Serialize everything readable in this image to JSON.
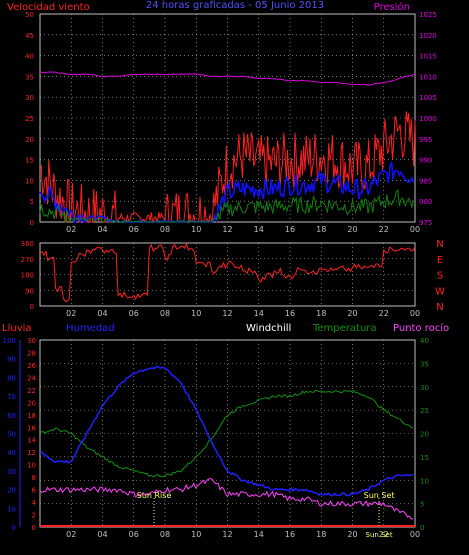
{
  "colors": {
    "wind": "#ff2020",
    "gust": "#ff2020",
    "pressure": "#e000e0",
    "title": "#5050ff",
    "dir": "#ff2020",
    "humidity": "#2020ff",
    "windchill": "#ffffff",
    "temperature": "#109010",
    "dewpoint": "#ff40ff",
    "rain": "#ff2020",
    "grid": "#c0c0c0",
    "frame": "#c0c0c0"
  },
  "chart_data": [
    {
      "type": "line",
      "title": "24 horas graficadas - 05 Junio 2013",
      "ylabel_left": "Velocidad viento",
      "ylabel_right": "Presión",
      "yticks_left": [
        "0",
        "5",
        "10",
        "15",
        "20",
        "25",
        "30",
        "35",
        "40",
        "45",
        "50"
      ],
      "yticks_right": [
        "975",
        "980",
        "985",
        "990",
        "995",
        "1000",
        "1005",
        "1010",
        "1015",
        "1020",
        "1025"
      ],
      "xticks": [
        "02",
        "04",
        "06",
        "08",
        "10",
        "12",
        "14",
        "16",
        "18",
        "20",
        "22",
        "00"
      ],
      "ylim_left": [
        0,
        50
      ],
      "ylim_right": [
        975,
        1025
      ],
      "x_hours": [
        0,
        1,
        2,
        3,
        4,
        5,
        6,
        7,
        8,
        9,
        10,
        11,
        12,
        13,
        14,
        15,
        16,
        17,
        18,
        19,
        20,
        21,
        22,
        23,
        24
      ],
      "series": [
        {
          "key": "gust",
          "values": [
            13,
            7,
            3,
            2,
            2,
            1,
            1,
            1,
            1,
            2,
            2,
            2,
            14,
            16,
            14,
            14,
            15,
            15,
            16,
            15,
            13,
            13,
            18,
            22,
            19
          ]
        },
        {
          "key": "wind",
          "values": [
            8,
            5,
            2,
            1,
            1,
            0,
            0,
            0,
            0,
            0,
            0,
            0,
            7,
            8,
            8,
            8,
            9,
            9,
            10,
            9,
            8,
            8,
            11,
            13,
            10
          ]
        },
        {
          "key": "pressure",
          "values": [
            1011,
            1011,
            1010.5,
            1010.5,
            1010,
            1010,
            1010.5,
            1010.5,
            1010.5,
            1010.5,
            1010.5,
            1010,
            1010,
            1010,
            1009.5,
            1009.5,
            1009,
            1009,
            1008.5,
            1008.5,
            1008,
            1008,
            1008.5,
            1009.5,
            1010.5
          ]
        }
      ]
    },
    {
      "type": "scatter",
      "yticks": [
        "0",
        "90",
        "180",
        "270",
        "360"
      ],
      "ylim": [
        0,
        360
      ],
      "right_labels": [
        "N",
        "W",
        "S",
        "E",
        "N"
      ],
      "xticks": [
        "02",
        "04",
        "06",
        "08",
        "10",
        "12",
        "14",
        "16",
        "18",
        "20",
        "22",
        "00"
      ],
      "series": [
        {
          "key": "dir",
          "x": [
            0,
            0.5,
            1,
            1.5,
            2,
            2.5,
            3,
            3.5,
            4,
            4.5,
            5,
            5.5,
            6,
            6.5,
            7,
            7.5,
            8,
            8.5,
            9,
            9.5,
            10,
            10.5,
            11,
            11.5,
            12,
            12.5,
            13,
            13.5,
            14,
            14.5,
            15,
            15.5,
            16,
            16.5,
            17,
            17.5,
            18,
            18.5,
            19,
            19.5,
            20,
            20.5,
            21,
            21.5,
            22,
            22.5,
            23,
            23.5,
            24
          ],
          "values": [
            300,
            260,
            100,
            40,
            250,
            300,
            320,
            320,
            320,
            320,
            60,
            60,
            60,
            60,
            330,
            330,
            280,
            340,
            340,
            320,
            240,
            240,
            200,
            230,
            240,
            220,
            200,
            200,
            150,
            180,
            200,
            180,
            170,
            220,
            200,
            200,
            210,
            200,
            210,
            210,
            220,
            220,
            220,
            240,
            320,
            330,
            320,
            330,
            340
          ]
        }
      ]
    },
    {
      "type": "line",
      "labels": {
        "rain": "Lluvia",
        "humidity": "Humedad",
        "windchill": "Windchill",
        "temperature": "Temperatura",
        "dewpoint": "Punto rocío"
      },
      "yticks_rain": [
        "0",
        "2",
        "4",
        "6",
        "8",
        "10",
        "12",
        "14",
        "16",
        "18",
        "20",
        "22",
        "24",
        "26",
        "28",
        "30"
      ],
      "yticks_humidity": [
        "0",
        "10",
        "20",
        "30",
        "40",
        "50",
        "60",
        "70",
        "80",
        "90",
        "100"
      ],
      "yticks_temp": [
        "0",
        "5",
        "10",
        "15",
        "20",
        "25",
        "30",
        "35",
        "40"
      ],
      "xticks": [
        "02",
        "04",
        "06",
        "08",
        "10",
        "12",
        "14",
        "16",
        "18",
        "20",
        "22",
        "00"
      ],
      "ylim_temp": [
        0,
        40
      ],
      "annotations": [
        {
          "text": "Sun Rise",
          "x": 7.3
        },
        {
          "text": "Sun Set",
          "x": 21.7
        }
      ],
      "extra_tick": "Sun Set",
      "x_hours": [
        0,
        1,
        2,
        3,
        4,
        5,
        6,
        7,
        8,
        9,
        10,
        11,
        12,
        13,
        14,
        15,
        16,
        17,
        18,
        19,
        20,
        21,
        22,
        23,
        24
      ],
      "series": [
        {
          "key": "temperature",
          "values": [
            20,
            21,
            20,
            17,
            15,
            13,
            12,
            11,
            11,
            12,
            15,
            19,
            24,
            26,
            27,
            28,
            28,
            29,
            29,
            29,
            29,
            28,
            25,
            23,
            21
          ]
        },
        {
          "key": "humidity",
          "values": [
            16,
            14,
            14,
            20,
            26,
            30,
            33,
            34,
            34,
            31,
            25,
            18,
            12,
            10,
            9,
            8,
            8,
            8,
            7,
            7,
            7,
            8,
            10,
            11,
            11
          ]
        },
        {
          "key": "dewpoint",
          "values": [
            8,
            8,
            8,
            8,
            8,
            8,
            7,
            7,
            8,
            8,
            9,
            10,
            7,
            7,
            7,
            7,
            6,
            6,
            5,
            5,
            5,
            5,
            5,
            3,
            2
          ]
        },
        {
          "key": "rain",
          "values": [
            0,
            0,
            0,
            0,
            0,
            0,
            0,
            0,
            0,
            0,
            0,
            0,
            0,
            0,
            0,
            0,
            0,
            0,
            0,
            0,
            0,
            0,
            0,
            0,
            0
          ]
        }
      ]
    }
  ]
}
